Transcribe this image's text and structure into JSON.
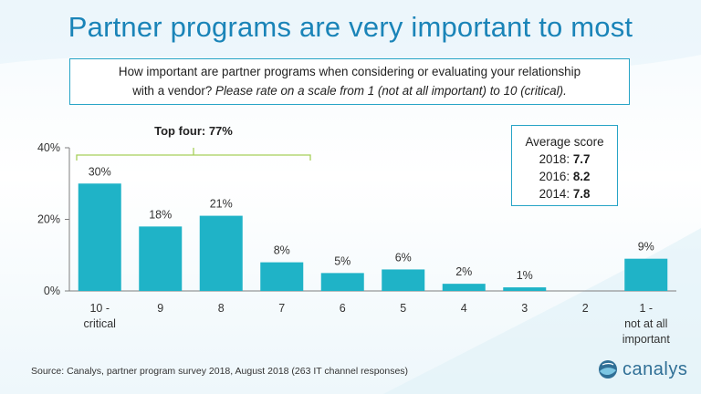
{
  "title": "Partner programs are very important to most",
  "question": {
    "line1": "How important are partner programs when considering or evaluating your relationship",
    "line2_plain": "with a vendor?",
    "line2_italic": "Please rate on a scale from 1 (not at all important) to 10 (critical)."
  },
  "average": {
    "heading": "Average score",
    "rows": [
      {
        "label": "2018:",
        "value": "7.7"
      },
      {
        "label": "2016:",
        "value": "8.2"
      },
      {
        "label": "2014:",
        "value": "7.8"
      }
    ]
  },
  "source": "Source: Canalys, partner program survey 2018, August 2018 (263 IT channel responses)",
  "logo_text": "canalys",
  "chart_data": {
    "type": "bar",
    "categories": [
      [
        "10 -",
        "critical"
      ],
      [
        "9"
      ],
      [
        "8"
      ],
      [
        "7"
      ],
      [
        "6"
      ],
      [
        "5"
      ],
      [
        "4"
      ],
      [
        "3"
      ],
      [
        "2"
      ],
      [
        "1 -",
        "not at all",
        "important"
      ]
    ],
    "values": [
      30,
      18,
      21,
      8,
      5,
      6,
      2,
      1,
      0,
      9
    ],
    "data_labels": [
      "30%",
      "18%",
      "21%",
      "8%",
      "5%",
      "6%",
      "2%",
      "1%",
      "",
      "9%"
    ],
    "yticks": [
      "0%",
      "20%",
      "40%"
    ],
    "ytick_values": [
      0,
      20,
      40
    ],
    "ylim": [
      0,
      40
    ],
    "grid": false,
    "bar_color": "#1fb3c7",
    "annotation": {
      "text": "Top four: 77%",
      "categories": [
        0,
        3
      ]
    }
  },
  "colors": {
    "title": "#1a84b8",
    "bar": "#1fb3c7",
    "bracket": "#a7cf5a",
    "border": "#27a4c6"
  }
}
